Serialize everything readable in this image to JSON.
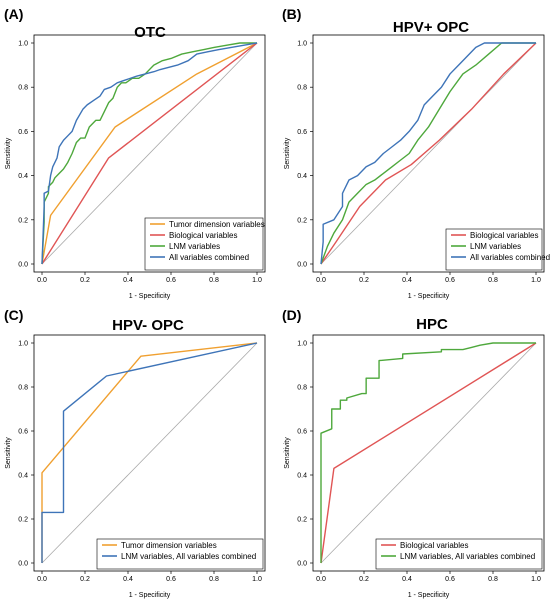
{
  "colors": {
    "orange": "#F0A030",
    "red": "#E05555",
    "green": "#4EA83C",
    "blue": "#3E74B8",
    "diag": "#AAAAAA"
  },
  "chart_data": [
    {
      "letter": "(A)",
      "title": "OTC",
      "type": "line",
      "xlabel": "1 - Specificity",
      "ylabel": "Sensitivity",
      "xlim": [
        0,
        1
      ],
      "ylim": [
        0,
        1
      ],
      "ticks": [
        "0.0",
        "0.2",
        "0.4",
        "0.6",
        "0.8",
        "1.0"
      ],
      "legend_position": "bottom-right",
      "series": [
        {
          "name": "Tumor dimension variables",
          "color": "orange",
          "x": [
            0,
            0.04,
            0.34,
            0.72,
            1.0
          ],
          "y": [
            0,
            0.22,
            0.62,
            0.86,
            1.0
          ]
        },
        {
          "name": "Biological variables",
          "color": "red",
          "x": [
            0,
            0.31,
            1.0
          ],
          "y": [
            0,
            0.48,
            1.0
          ]
        },
        {
          "name": "LNM variables",
          "color": "green",
          "x": [
            0,
            0.01,
            0.01,
            0.03,
            0.03,
            0.05,
            0.06,
            0.08,
            0.1,
            0.12,
            0.14,
            0.16,
            0.18,
            0.2,
            0.22,
            0.25,
            0.27,
            0.29,
            0.31,
            0.33,
            0.35,
            0.37,
            0.39,
            0.42,
            0.45,
            0.48,
            0.52,
            0.56,
            0.6,
            0.65,
            0.7,
            0.75,
            0.8,
            0.86,
            0.92,
            1.0
          ],
          "y": [
            0,
            0.19,
            0.28,
            0.32,
            0.35,
            0.37,
            0.39,
            0.41,
            0.43,
            0.46,
            0.5,
            0.55,
            0.57,
            0.57,
            0.62,
            0.65,
            0.65,
            0.69,
            0.73,
            0.75,
            0.8,
            0.82,
            0.82,
            0.84,
            0.84,
            0.86,
            0.9,
            0.92,
            0.93,
            0.95,
            0.96,
            0.97,
            0.98,
            0.99,
            1.0,
            1.0
          ]
        },
        {
          "name": "All variables combined",
          "color": "blue",
          "x": [
            0,
            0.01,
            0.01,
            0.03,
            0.04,
            0.05,
            0.07,
            0.08,
            0.1,
            0.12,
            0.14,
            0.16,
            0.19,
            0.21,
            0.24,
            0.27,
            0.29,
            0.32,
            0.35,
            0.38,
            0.41,
            0.44,
            0.48,
            0.52,
            0.55,
            0.59,
            0.63,
            0.68,
            0.72,
            0.77,
            0.82,
            0.88,
            0.94,
            1.0
          ],
          "y": [
            0,
            0.26,
            0.32,
            0.33,
            0.4,
            0.44,
            0.48,
            0.53,
            0.56,
            0.58,
            0.6,
            0.65,
            0.7,
            0.72,
            0.74,
            0.76,
            0.79,
            0.8,
            0.82,
            0.83,
            0.84,
            0.85,
            0.86,
            0.87,
            0.88,
            0.89,
            0.9,
            0.92,
            0.95,
            0.96,
            0.97,
            0.98,
            0.99,
            1.0
          ]
        }
      ]
    },
    {
      "letter": "(B)",
      "title": "HPV+ OPC",
      "type": "line",
      "xlabel": "1 - Specificity",
      "ylabel": "Sensitivity",
      "xlim": [
        0,
        1
      ],
      "ylim": [
        0,
        1
      ],
      "ticks": [
        "0.0",
        "0.2",
        "0.4",
        "0.6",
        "0.8",
        "1.0"
      ],
      "legend_position": "bottom-right",
      "series": [
        {
          "name": "Biological variables",
          "color": "red",
          "x": [
            0,
            0.07,
            0.18,
            0.3,
            0.42,
            0.55,
            0.7,
            0.85,
            1.0
          ],
          "y": [
            0,
            0.1,
            0.26,
            0.38,
            0.45,
            0.56,
            0.7,
            0.86,
            1.0
          ]
        },
        {
          "name": "LNM variables",
          "color": "green",
          "x": [
            0,
            0.03,
            0.06,
            0.1,
            0.13,
            0.17,
            0.21,
            0.25,
            0.29,
            0.33,
            0.37,
            0.41,
            0.45,
            0.5,
            0.55,
            0.6,
            0.66,
            0.72,
            0.78,
            0.84,
            1.0
          ],
          "y": [
            0,
            0.08,
            0.14,
            0.2,
            0.28,
            0.32,
            0.36,
            0.38,
            0.41,
            0.44,
            0.47,
            0.5,
            0.56,
            0.62,
            0.7,
            0.78,
            0.86,
            0.9,
            0.95,
            1.0,
            1.0
          ]
        },
        {
          "name": "All variables combined",
          "color": "blue",
          "x": [
            0,
            0.01,
            0.01,
            0.06,
            0.06,
            0.1,
            0.1,
            0.13,
            0.17,
            0.21,
            0.25,
            0.29,
            0.33,
            0.37,
            0.41,
            0.45,
            0.48,
            0.52,
            0.56,
            0.6,
            0.64,
            0.68,
            0.72,
            0.76,
            1.0
          ],
          "y": [
            0,
            0.1,
            0.18,
            0.2,
            0.2,
            0.26,
            0.32,
            0.38,
            0.4,
            0.44,
            0.46,
            0.5,
            0.53,
            0.56,
            0.6,
            0.65,
            0.72,
            0.76,
            0.8,
            0.86,
            0.9,
            0.94,
            0.98,
            1.0,
            1.0
          ]
        }
      ]
    },
    {
      "letter": "(C)",
      "title": "HPV- OPC",
      "type": "line",
      "xlabel": "1 - Specificity",
      "ylabel": "Sensitivity",
      "xlim": [
        0,
        1
      ],
      "ylim": [
        0,
        1
      ],
      "ticks": [
        "0.0",
        "0.2",
        "0.4",
        "0.6",
        "0.8",
        "1.0"
      ],
      "legend_position": "bottom-right",
      "series": [
        {
          "name": "Tumor dimension variables",
          "color": "orange",
          "x": [
            0,
            0,
            0.46,
            1.0
          ],
          "y": [
            0,
            0.41,
            0.94,
            1.0
          ]
        },
        {
          "name": "LNM variables, All variables combined",
          "color": "blue",
          "x": [
            0,
            0,
            0.1,
            0.1,
            0.3,
            1.0
          ],
          "y": [
            0,
            0.23,
            0.23,
            0.69,
            0.85,
            1.0
          ]
        }
      ]
    },
    {
      "letter": "(D)",
      "title": "HPC",
      "type": "line",
      "xlabel": "1 - Specificity",
      "ylabel": "Sensitivity",
      "xlim": [
        0,
        1
      ],
      "ylim": [
        0,
        1
      ],
      "ticks": [
        "0.0",
        "0.2",
        "0.4",
        "0.6",
        "0.8",
        "1.0"
      ],
      "legend_position": "bottom-right",
      "series": [
        {
          "name": "Biological variables",
          "color": "red",
          "x": [
            0,
            0.06,
            1.0
          ],
          "y": [
            0,
            0.43,
            1.0
          ]
        },
        {
          "name": "LNM variables, All variables combined",
          "color": "green",
          "x": [
            0,
            0,
            0.05,
            0.05,
            0.09,
            0.09,
            0.12,
            0.12,
            0.19,
            0.21,
            0.21,
            0.25,
            0.27,
            0.27,
            0.38,
            0.38,
            0.56,
            0.56,
            0.66,
            0.7,
            0.74,
            0.8,
            1.0
          ],
          "y": [
            0,
            0.59,
            0.61,
            0.7,
            0.7,
            0.74,
            0.74,
            0.75,
            0.77,
            0.77,
            0.84,
            0.84,
            0.84,
            0.92,
            0.93,
            0.95,
            0.96,
            0.97,
            0.97,
            0.98,
            0.99,
            1.0,
            1.0
          ]
        }
      ]
    }
  ]
}
